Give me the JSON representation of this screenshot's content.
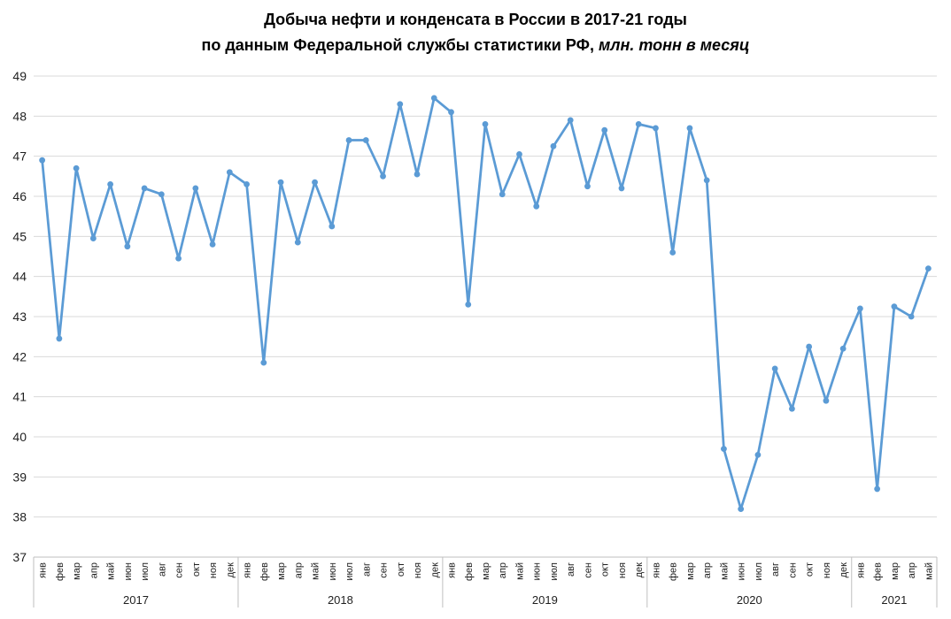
{
  "title": {
    "line1": "Добыча нефти и конденсата в России в 2017-21 годы",
    "line2_prefix": "по данным Федеральной службы статистики РФ, ",
    "line2_italic": "млн. тонн в месяц"
  },
  "colors": {
    "line": "#5B9BD5",
    "grid": "#D9D9D9",
    "axis": "#BFBFBF",
    "text": "#1f1f1f"
  },
  "chart_data": {
    "type": "line",
    "title": "Добыча нефти и конденсата в России в 2017-21 годы по данным Федеральной службы статистики РФ, млн. тонн в месяц",
    "ylabel": "млн. тонн в месяц",
    "ylim": [
      37,
      49
    ],
    "ytick_step": 1,
    "yticks": [
      49,
      48,
      47,
      46,
      45,
      44,
      43,
      42,
      41,
      40,
      39,
      38,
      37
    ],
    "grid": true,
    "legend": "none",
    "line_color": "#5B9BD5",
    "marker": "circle",
    "groups": [
      {
        "year": "2017",
        "months": [
          "янв",
          "фев",
          "мар",
          "апр",
          "май",
          "июн",
          "июл",
          "авг",
          "сен",
          "окт",
          "ноя",
          "дек"
        ],
        "values": [
          46.9,
          42.45,
          46.7,
          44.95,
          46.3,
          44.75,
          46.2,
          46.05,
          44.45,
          46.2,
          44.8,
          46.6
        ]
      },
      {
        "year": "2018",
        "months": [
          "янв",
          "фев",
          "мар",
          "апр",
          "май",
          "июн",
          "июл",
          "авг",
          "сен",
          "окт",
          "ноя",
          "дек"
        ],
        "values": [
          46.3,
          41.85,
          46.35,
          44.85,
          46.35,
          45.25,
          47.4,
          47.4,
          46.5,
          48.3,
          46.55,
          48.45
        ]
      },
      {
        "year": "2019",
        "months": [
          "янв",
          "фев",
          "мар",
          "апр",
          "май",
          "июн",
          "июл",
          "авг",
          "сен",
          "окт",
          "ноя",
          "дек"
        ],
        "values": [
          48.1,
          43.3,
          47.8,
          46.05,
          47.05,
          45.75,
          47.25,
          47.9,
          46.25,
          47.65,
          46.2,
          47.8
        ]
      },
      {
        "year": "2020",
        "months": [
          "янв",
          "фев",
          "мар",
          "апр",
          "май",
          "июн",
          "июл",
          "авг",
          "сен",
          "окт",
          "ноя",
          "дек"
        ],
        "values": [
          47.7,
          44.6,
          47.7,
          46.4,
          39.7,
          38.2,
          39.55,
          41.7,
          40.7,
          42.25,
          40.9,
          42.2
        ]
      },
      {
        "year": "2021",
        "months": [
          "янв",
          "фев",
          "мар",
          "апр",
          "май"
        ],
        "values": [
          43.2,
          38.7,
          43.25,
          43.0,
          44.2
        ]
      }
    ]
  }
}
